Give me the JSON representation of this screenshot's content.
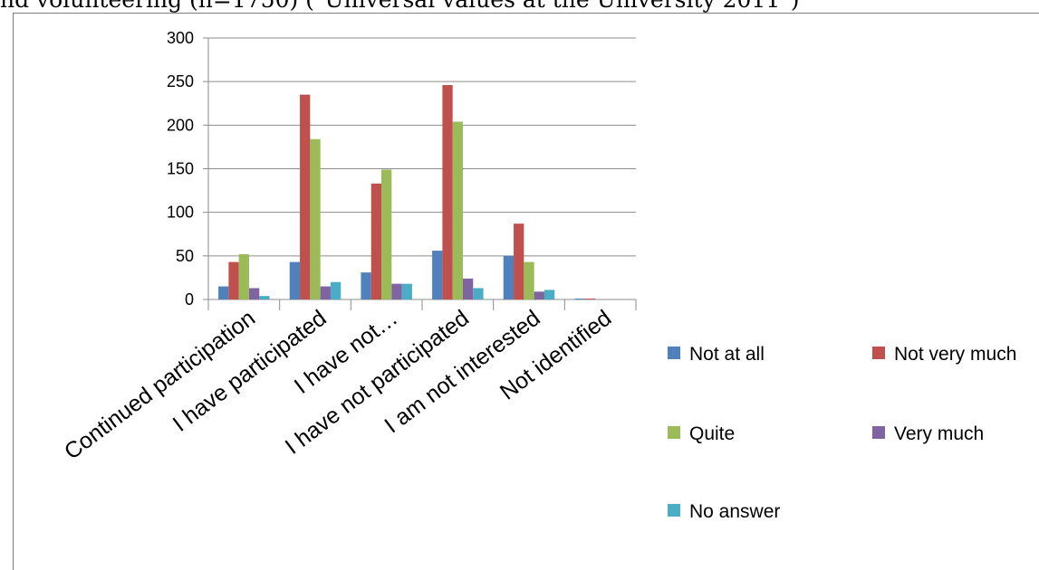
{
  "page_title": "nd volunteering (n=1750) (\"Universal values at the University 2011\")",
  "chart_data": {
    "type": "bar",
    "categories": [
      "Continued participation",
      "I have participated",
      "I have not…",
      "I have not participated",
      "I am not interested",
      "Not identified"
    ],
    "series": [
      {
        "name": "Not at all",
        "color": "#4f81bd",
        "values": [
          15,
          43,
          31,
          56,
          50,
          1
        ]
      },
      {
        "name": "Not very much",
        "color": "#c0504d",
        "values": [
          43,
          235,
          133,
          246,
          87,
          1
        ]
      },
      {
        "name": "Quite",
        "color": "#9bbb59",
        "values": [
          52,
          184,
          149,
          204,
          43,
          0
        ]
      },
      {
        "name": "Very much",
        "color": "#8064a2",
        "values": [
          13,
          15,
          18,
          24,
          9,
          0
        ]
      },
      {
        "name": "No answer",
        "color": "#4bacc6",
        "values": [
          4,
          20,
          18,
          13,
          11,
          0
        ]
      }
    ],
    "ylim": [
      0,
      300
    ],
    "yticks": [
      0,
      50,
      100,
      150,
      200,
      250,
      300
    ],
    "grid": true,
    "legend": "right",
    "title": "",
    "xlabel": "",
    "ylabel": ""
  }
}
